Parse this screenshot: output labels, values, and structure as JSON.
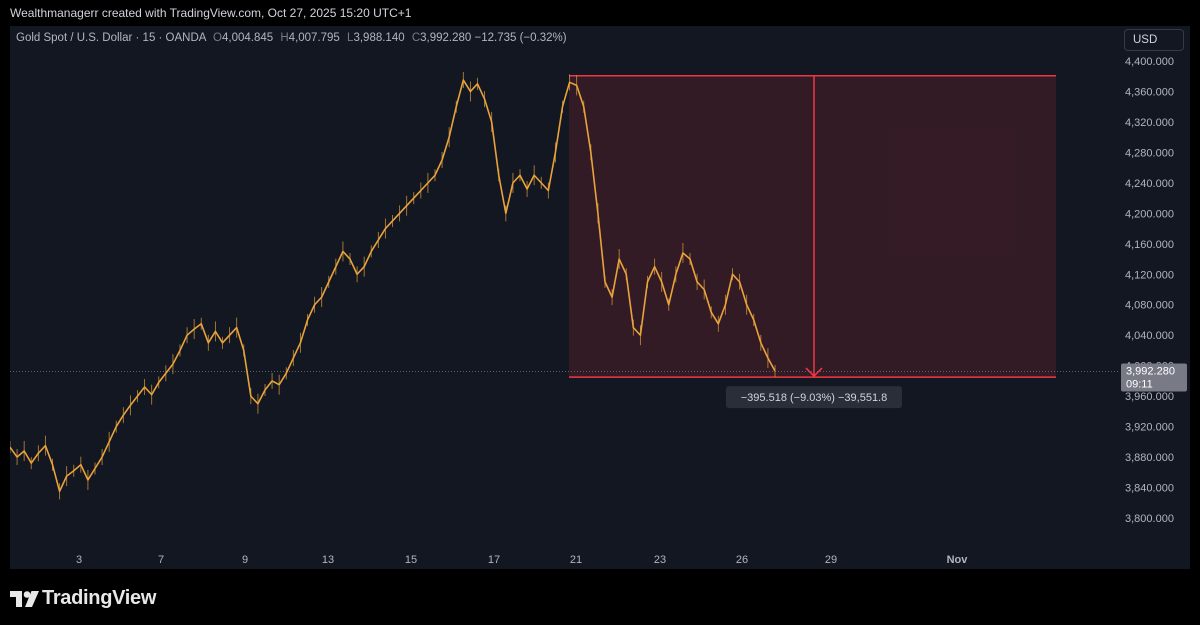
{
  "header": {
    "attribution": "Wealthmanagerr created with TradingView.com, Oct 27, 2025 15:20 UTC+1"
  },
  "symbol": {
    "name": "Gold Spot / U.S. Dollar · 15 · OANDA",
    "o_label": "O",
    "open": "4,004.845",
    "h_label": "H",
    "high": "4,007.795",
    "l_label": "L",
    "low": "3,988.140",
    "c_label": "C",
    "close": "3,992.280",
    "change": "−12.735 (−0.32%)"
  },
  "currency_button": "USD",
  "colors": {
    "background": "#131722",
    "candle": "#e8a33c",
    "box_border": "#f23645",
    "box_fill": "#3a1c26",
    "last_price_label": "#787b86"
  },
  "price_label": {
    "value": "3,992.280",
    "countdown": "09:11"
  },
  "measure_label": "−395.518 (−9.03%) −39,551.8",
  "branding": {
    "name": "TradingView",
    "icon": "tradingview-logo-icon"
  },
  "chart_data": {
    "type": "line",
    "title": "Gold Spot / U.S. Dollar · 15 · OANDA",
    "xlabel": "",
    "ylabel": "USD",
    "grid": false,
    "ylim": [
      3775,
      4405
    ],
    "x_tick_labels": [
      "3",
      "7",
      "9",
      "13",
      "15",
      "17",
      "21",
      "23",
      "26",
      "29",
      "Nov"
    ],
    "y_tick_labels": [
      "4,400.000",
      "4,360.000",
      "4,320.000",
      "4,280.000",
      "4,240.000",
      "4,200.000",
      "4,160.000",
      "4,120.000",
      "4,080.000",
      "4,040.000",
      "4,000.000",
      "3,960.000",
      "3,920.000",
      "3,880.000",
      "3,840.000",
      "3,800.000"
    ],
    "y_ticks": [
      4400,
      4360,
      4320,
      4280,
      4240,
      4200,
      4160,
      4120,
      4080,
      4040,
      4000,
      3960,
      3920,
      3880,
      3840,
      3800
    ],
    "series": [
      {
        "values": [
          [
            0,
            3893
          ],
          [
            1.5,
            3880
          ],
          [
            3,
            3888
          ],
          [
            4.5,
            3872
          ],
          [
            6,
            3885
          ],
          [
            7.5,
            3895
          ],
          [
            9,
            3870
          ],
          [
            10.5,
            3835
          ],
          [
            12,
            3855
          ],
          [
            13.5,
            3862
          ],
          [
            15,
            3870
          ],
          [
            16.5,
            3850
          ],
          [
            18,
            3865
          ],
          [
            19.5,
            3880
          ],
          [
            21,
            3900
          ],
          [
            22.5,
            3920
          ],
          [
            24,
            3935
          ],
          [
            25.5,
            3948
          ],
          [
            27,
            3960
          ],
          [
            28.5,
            3972
          ],
          [
            30,
            3962
          ],
          [
            31.5,
            3978
          ],
          [
            33,
            3990
          ],
          [
            34.5,
            4002
          ],
          [
            36,
            4020
          ],
          [
            37.5,
            4040
          ],
          [
            39,
            4048
          ],
          [
            40.5,
            4055
          ],
          [
            42,
            4030
          ],
          [
            43.5,
            4045
          ],
          [
            45,
            4030
          ],
          [
            46.5,
            4040
          ],
          [
            48,
            4050
          ],
          [
            49.5,
            4020
          ],
          [
            51,
            3960
          ],
          [
            52.5,
            3950
          ],
          [
            54,
            3968
          ],
          [
            55.5,
            3980
          ],
          [
            57,
            3975
          ],
          [
            58.5,
            3990
          ],
          [
            60,
            4010
          ],
          [
            61.5,
            4030
          ],
          [
            63,
            4060
          ],
          [
            64.5,
            4080
          ],
          [
            66,
            4090
          ],
          [
            67.5,
            4110
          ],
          [
            69,
            4130
          ],
          [
            70.5,
            4150
          ],
          [
            72,
            4140
          ],
          [
            73.5,
            4120
          ],
          [
            75,
            4130
          ],
          [
            76.5,
            4150
          ],
          [
            78,
            4165
          ],
          [
            79.5,
            4180
          ],
          [
            81,
            4190
          ],
          [
            82.5,
            4200
          ],
          [
            84,
            4210
          ],
          [
            85.5,
            4220
          ],
          [
            87,
            4230
          ],
          [
            88.5,
            4240
          ],
          [
            90,
            4250
          ],
          [
            91.5,
            4270
          ],
          [
            93,
            4300
          ],
          [
            94.5,
            4340
          ],
          [
            96,
            4375
          ],
          [
            97.5,
            4360
          ],
          [
            99,
            4370
          ],
          [
            100.5,
            4350
          ],
          [
            102,
            4320
          ],
          [
            103.5,
            4250
          ],
          [
            105,
            4200
          ],
          [
            106.5,
            4240
          ],
          [
            108,
            4250
          ],
          [
            109.5,
            4232
          ],
          [
            111,
            4250
          ],
          [
            112.5,
            4240
          ],
          [
            114,
            4230
          ],
          [
            115.5,
            4280
          ],
          [
            117,
            4340
          ],
          [
            118.5,
            4372
          ],
          [
            120,
            4368
          ],
          [
            121.5,
            4340
          ],
          [
            123,
            4280
          ],
          [
            124.5,
            4200
          ],
          [
            126,
            4110
          ],
          [
            127.5,
            4090
          ],
          [
            129,
            4140
          ],
          [
            130.5,
            4120
          ],
          [
            132,
            4050
          ],
          [
            133.5,
            4040
          ],
          [
            135,
            4110
          ],
          [
            136.5,
            4130
          ],
          [
            138,
            4110
          ],
          [
            139.5,
            4080
          ],
          [
            141,
            4120
          ],
          [
            142.5,
            4148
          ],
          [
            144,
            4140
          ],
          [
            145.5,
            4110
          ],
          [
            147,
            4100
          ],
          [
            148.5,
            4070
          ],
          [
            150,
            4055
          ],
          [
            151.5,
            4080
          ],
          [
            153,
            4120
          ],
          [
            154.5,
            4110
          ],
          [
            156,
            4080
          ],
          [
            157.5,
            4060
          ],
          [
            159,
            4030
          ],
          [
            160.5,
            4010
          ],
          [
            162,
            3993
          ]
        ]
      }
    ],
    "annotation": {
      "type": "short-position-box",
      "high_price": 4380.6,
      "low_price": 3985.0,
      "x_start": 120.0,
      "x_end": 222.3,
      "arrow_x": 170.7,
      "change_text": "−395.518 (−9.03%) −39,551.8"
    },
    "last_price": 3992.28
  }
}
